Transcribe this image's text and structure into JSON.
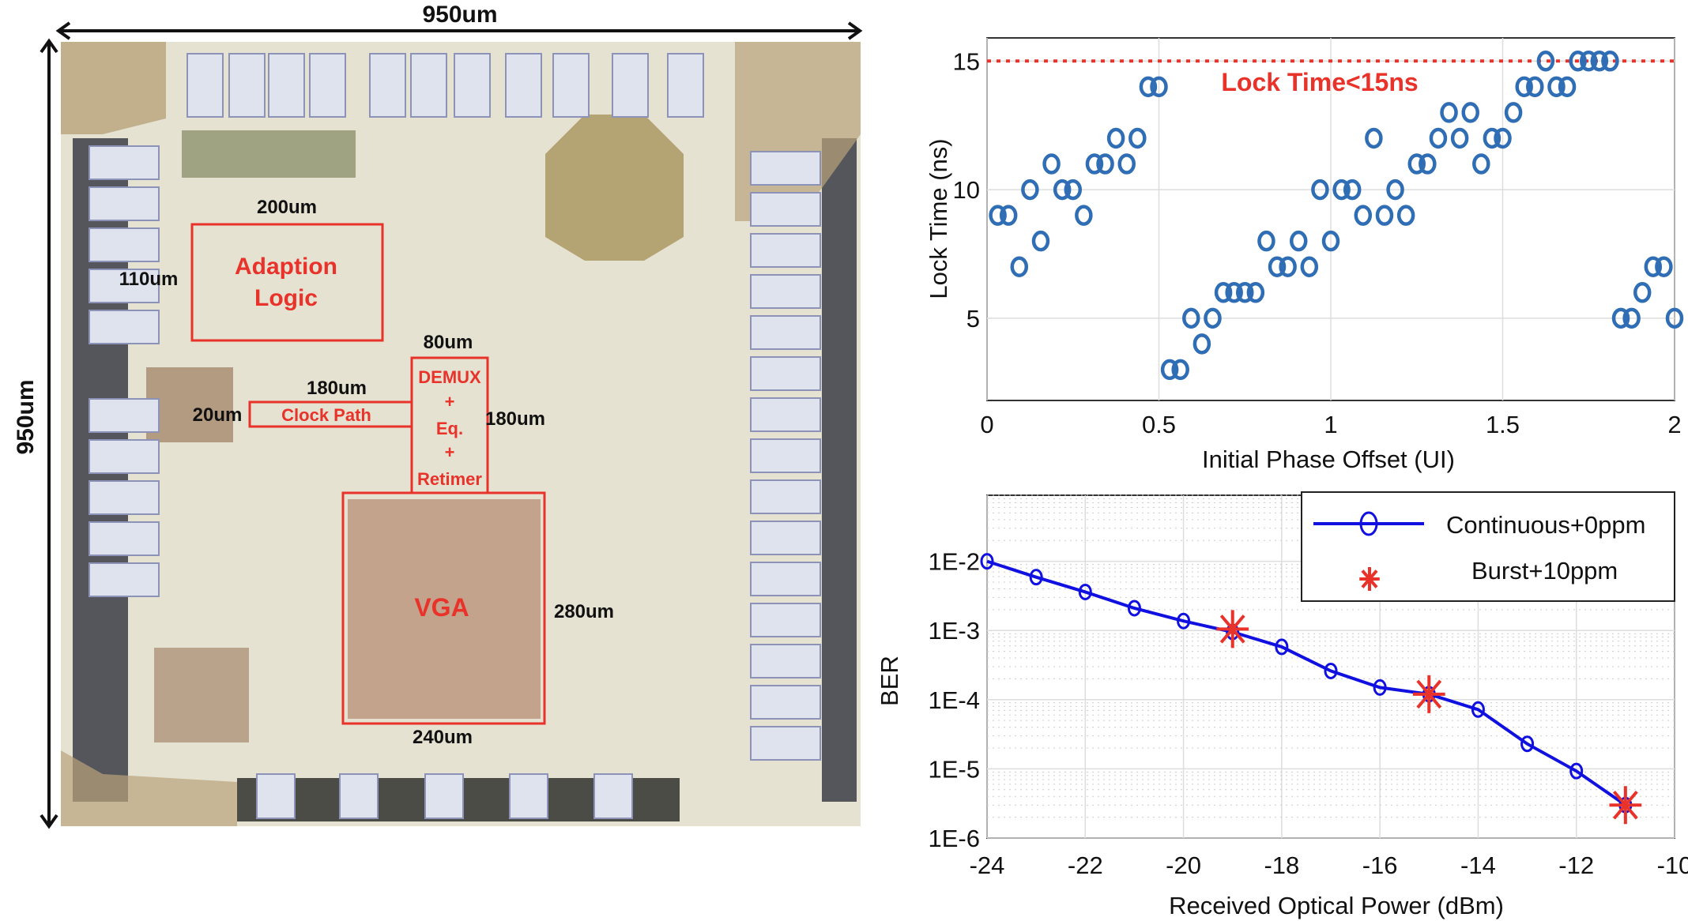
{
  "die": {
    "width_label": "950um",
    "height_label": "950um",
    "adaption": {
      "lines": [
        "Adaption",
        "Logic"
      ],
      "width_label": "200um",
      "height_label": "110um"
    },
    "demux": {
      "lines": [
        "DEMUX",
        "+",
        "Eq.",
        "+",
        "Retimer"
      ],
      "width_label": "80um",
      "height_label": "180um"
    },
    "clock_path": {
      "label": "Clock Path",
      "width_label": "180um",
      "height_label": "20um"
    },
    "vga": {
      "label": "VGA",
      "height_label": "280um",
      "width_label": "240um"
    },
    "colors": {
      "annotation": "#e8322a",
      "die_bg": "#e6e2d2",
      "pad": "#dfe3ee"
    }
  },
  "chart_data": [
    {
      "type": "scatter",
      "xlabel": "Initial Phase Offset (UI)",
      "ylabel": "Lock Time (ns)",
      "xlim": [
        0,
        2
      ],
      "ylim": [
        1.8,
        15.9
      ],
      "xticks": [
        0,
        0.5,
        1,
        1.5,
        2
      ],
      "xtick_labels": [
        "0",
        "0.5",
        "1",
        "1.5",
        "2"
      ],
      "yticks": [
        5,
        10,
        15
      ],
      "ytick_labels": [
        "5",
        "10",
        "15"
      ],
      "grid": true,
      "marker": "circle",
      "color": "#2f6db5",
      "x": [
        0.03125,
        0.0625,
        0.09375,
        0.125,
        0.15625,
        0.1875,
        0.21875,
        0.25,
        0.28125,
        0.3125,
        0.34375,
        0.375,
        0.40625,
        0.4375,
        0.46875,
        0.5,
        0.53125,
        0.5625,
        0.59375,
        0.625,
        0.65625,
        0.6875,
        0.71875,
        0.75,
        0.78125,
        0.8125,
        0.84375,
        0.875,
        0.90625,
        0.9375,
        0.96875,
        1.0,
        1.03125,
        1.0625,
        1.09375,
        1.125,
        1.15625,
        1.1875,
        1.21875,
        1.25,
        1.28125,
        1.3125,
        1.34375,
        1.375,
        1.40625,
        1.4375,
        1.46875,
        1.5,
        1.53125,
        1.5625,
        1.59375,
        1.625,
        1.65625,
        1.6875,
        1.71875,
        1.75,
        1.78125,
        1.8125,
        1.84375,
        1.875,
        1.90625,
        1.9375,
        1.96875,
        2.0
      ],
      "y": [
        9,
        9,
        7,
        10,
        8,
        11,
        10,
        10,
        9,
        11,
        11,
        12,
        11,
        12,
        14,
        14,
        3,
        3,
        5,
        4,
        5,
        6,
        6,
        6,
        6,
        8,
        7,
        7,
        8,
        7,
        10,
        8,
        10,
        10,
        9,
        12,
        9,
        10,
        9,
        11,
        11,
        12,
        13,
        12,
        13,
        11,
        12,
        12,
        13,
        14,
        14,
        15,
        14,
        14,
        15,
        15,
        15,
        15,
        5,
        5,
        6,
        7,
        7,
        5
      ],
      "reference_line": {
        "y": 15,
        "label": "Lock Time<15ns",
        "color": "#e8322a",
        "style": "dotted"
      }
    },
    {
      "type": "line",
      "xlabel": "Received Optical Power (dBm)",
      "ylabel": "BER",
      "xlim": [
        -24,
        -10
      ],
      "ylim": [
        1e-06,
        0.09
      ],
      "yscale": "log",
      "xticks": [
        -24,
        -22,
        -20,
        -18,
        -16,
        -14,
        -12,
        -10
      ],
      "xtick_labels": [
        "-24",
        "-22",
        "-20",
        "-18",
        "-16",
        "-14",
        "-12",
        "-10"
      ],
      "yticks": [
        1e-06,
        1e-05,
        0.0001,
        0.001,
        0.01
      ],
      "ytick_labels": [
        "1E-6",
        "1E-5",
        "1E-4",
        "1E-3",
        "1E-2"
      ],
      "grid": true,
      "legend_position": "top-right",
      "series": [
        {
          "name": "Continuous+0ppm",
          "color": "#1010e0",
          "marker": "circle",
          "x": [
            -24,
            -23,
            -22,
            -21,
            -20,
            -19,
            -18,
            -17,
            -16,
            -15,
            -14,
            -13,
            -12,
            -11
          ],
          "y": [
            0.01,
            0.0059,
            0.0036,
            0.0021,
            0.00137,
            0.00095,
            0.00058,
            0.00026,
            0.00015,
            0.00012,
            7.2e-05,
            2.3e-05,
            9.3e-06,
            3e-06
          ]
        },
        {
          "name": "Burst+10ppm",
          "color": "#e8322a",
          "marker": "asterisk",
          "x": [
            -19,
            -15,
            -11
          ],
          "y": [
            0.00105,
            0.00012,
            3e-06
          ]
        }
      ]
    }
  ]
}
